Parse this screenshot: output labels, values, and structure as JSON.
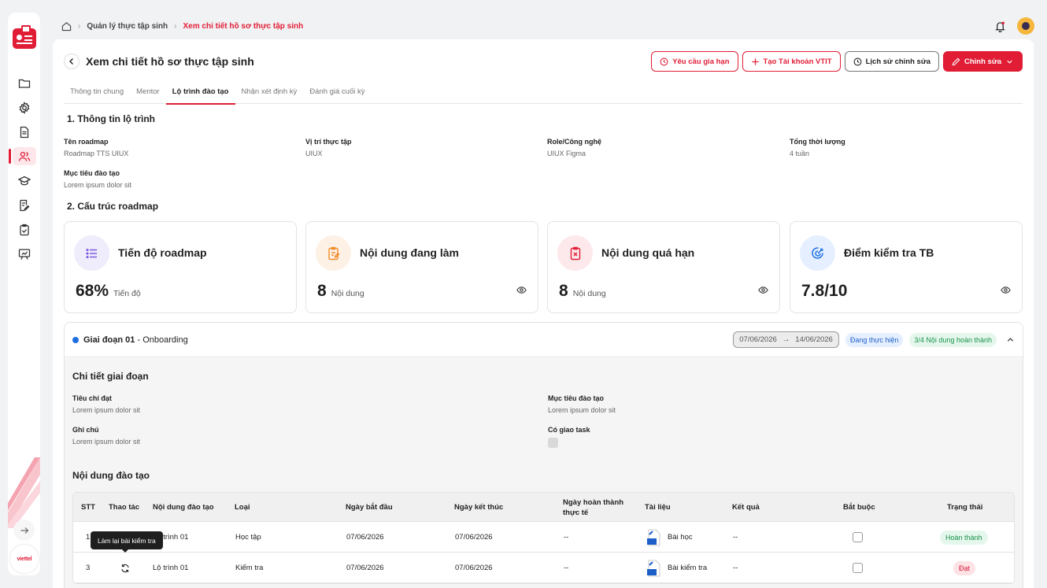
{
  "breadcrumb": {
    "items": [
      "Quản lý thực tập sinh"
    ],
    "current": "Xem chi tiết hồ sơ thực tập sinh"
  },
  "header": {
    "title": "Xem chi tiết hồ sơ thực tập sinh",
    "actions": {
      "extend": "Yêu cầu gia hạn",
      "create_account": "Tạo Tài khoản VTIT",
      "history": "Lịch sử chỉnh sửa",
      "edit": "Chỉnh sửa"
    }
  },
  "tabs": [
    "Thông tin chung",
    "Mentor",
    "Lộ trình đào tạo",
    "Nhận xét định kỳ",
    "Đánh giá cuối kỳ"
  ],
  "section1": {
    "title": "1. Thông tin lộ trình",
    "fields": [
      {
        "label": "Tên roadmap",
        "value": "Roadmap TTS UIUX"
      },
      {
        "label": "Vị trí thực tập",
        "value": "UIUX"
      },
      {
        "label": "Role/Công nghệ",
        "value": "UIUX Figma"
      },
      {
        "label": "Tổng thời lượng",
        "value": "4 tuần"
      },
      {
        "label": "Mục tiêu đào tạo",
        "value": "Lorem ipsum dolor sit"
      }
    ]
  },
  "section2": {
    "title": "2. Cấu trúc roadmap",
    "stats": [
      {
        "title": "Tiến độ roadmap",
        "value": "68%",
        "unit": "Tiến độ",
        "icon": "list-icon",
        "color": "#7b5ce0",
        "bg": "#efecfb"
      },
      {
        "title": "Nội dung đang làm",
        "value": "8",
        "unit": "Nội dung",
        "icon": "clipboard-edit-icon",
        "color": "#f08c2a",
        "bg": "#fdf1e5"
      },
      {
        "title": "Nội dung quá hạn",
        "value": "8",
        "unit": "Nội dung",
        "icon": "clipboard-x-icon",
        "color": "#e11d36",
        "bg": "#fde8eb"
      },
      {
        "title": "Điểm kiểm tra TB",
        "value": "7.8/10",
        "unit": "",
        "icon": "target-icon",
        "color": "#1d6fe1",
        "bg": "#e5efff"
      }
    ]
  },
  "phase": {
    "name": "Giai đoạn 01",
    "subtitle": "Onboarding",
    "date_start": "07/06/2026",
    "date_end": "14/06/2026",
    "status": "Đang thực hiện",
    "progress": "3/4 Nội dung hoàn thành",
    "detail_title": "Chi tiết giai đoạn",
    "fields": [
      {
        "label": "Tiêu chí đạt",
        "value": "Lorem ipsum dolor sit"
      },
      {
        "label": "Mục tiêu đào tạo",
        "value": "Lorem ipsum dolor sit"
      },
      {
        "label": "Ghi chú",
        "value": "Lorem ipsum dolor sit"
      },
      {
        "label": "Có giao task",
        "value": ""
      }
    ],
    "content_title": "Nội dung đào tạo"
  },
  "table": {
    "columns": [
      "STT",
      "Thao tác",
      "Nội dung đào tạo",
      "Loại",
      "Ngày bắt đầu",
      "Ngày kết thúc",
      "Ngày hoàn thành thực tế",
      "Tài liệu",
      "Kết quả",
      "Bắt buộc",
      "Trạng thái"
    ],
    "rows": [
      {
        "stt": "1",
        "content": "Lộ trình 01",
        "type": "Học tập",
        "start": "07/06/2026",
        "end": "07/06/2026",
        "actual": "--",
        "doc": "Bài học",
        "result": "--",
        "status": "Hoàn thành",
        "status_kind": "green"
      },
      {
        "stt": "3",
        "content": "Lộ trình 01",
        "type": "Kiểm tra",
        "start": "07/06/2026",
        "end": "07/06/2026",
        "actual": "--",
        "doc": "Bài kiểm tra",
        "result": "--",
        "status": "Đạt",
        "status_kind": "red"
      }
    ]
  },
  "tooltip": "Làm lại bài kiểm tra",
  "brand": "viettel"
}
